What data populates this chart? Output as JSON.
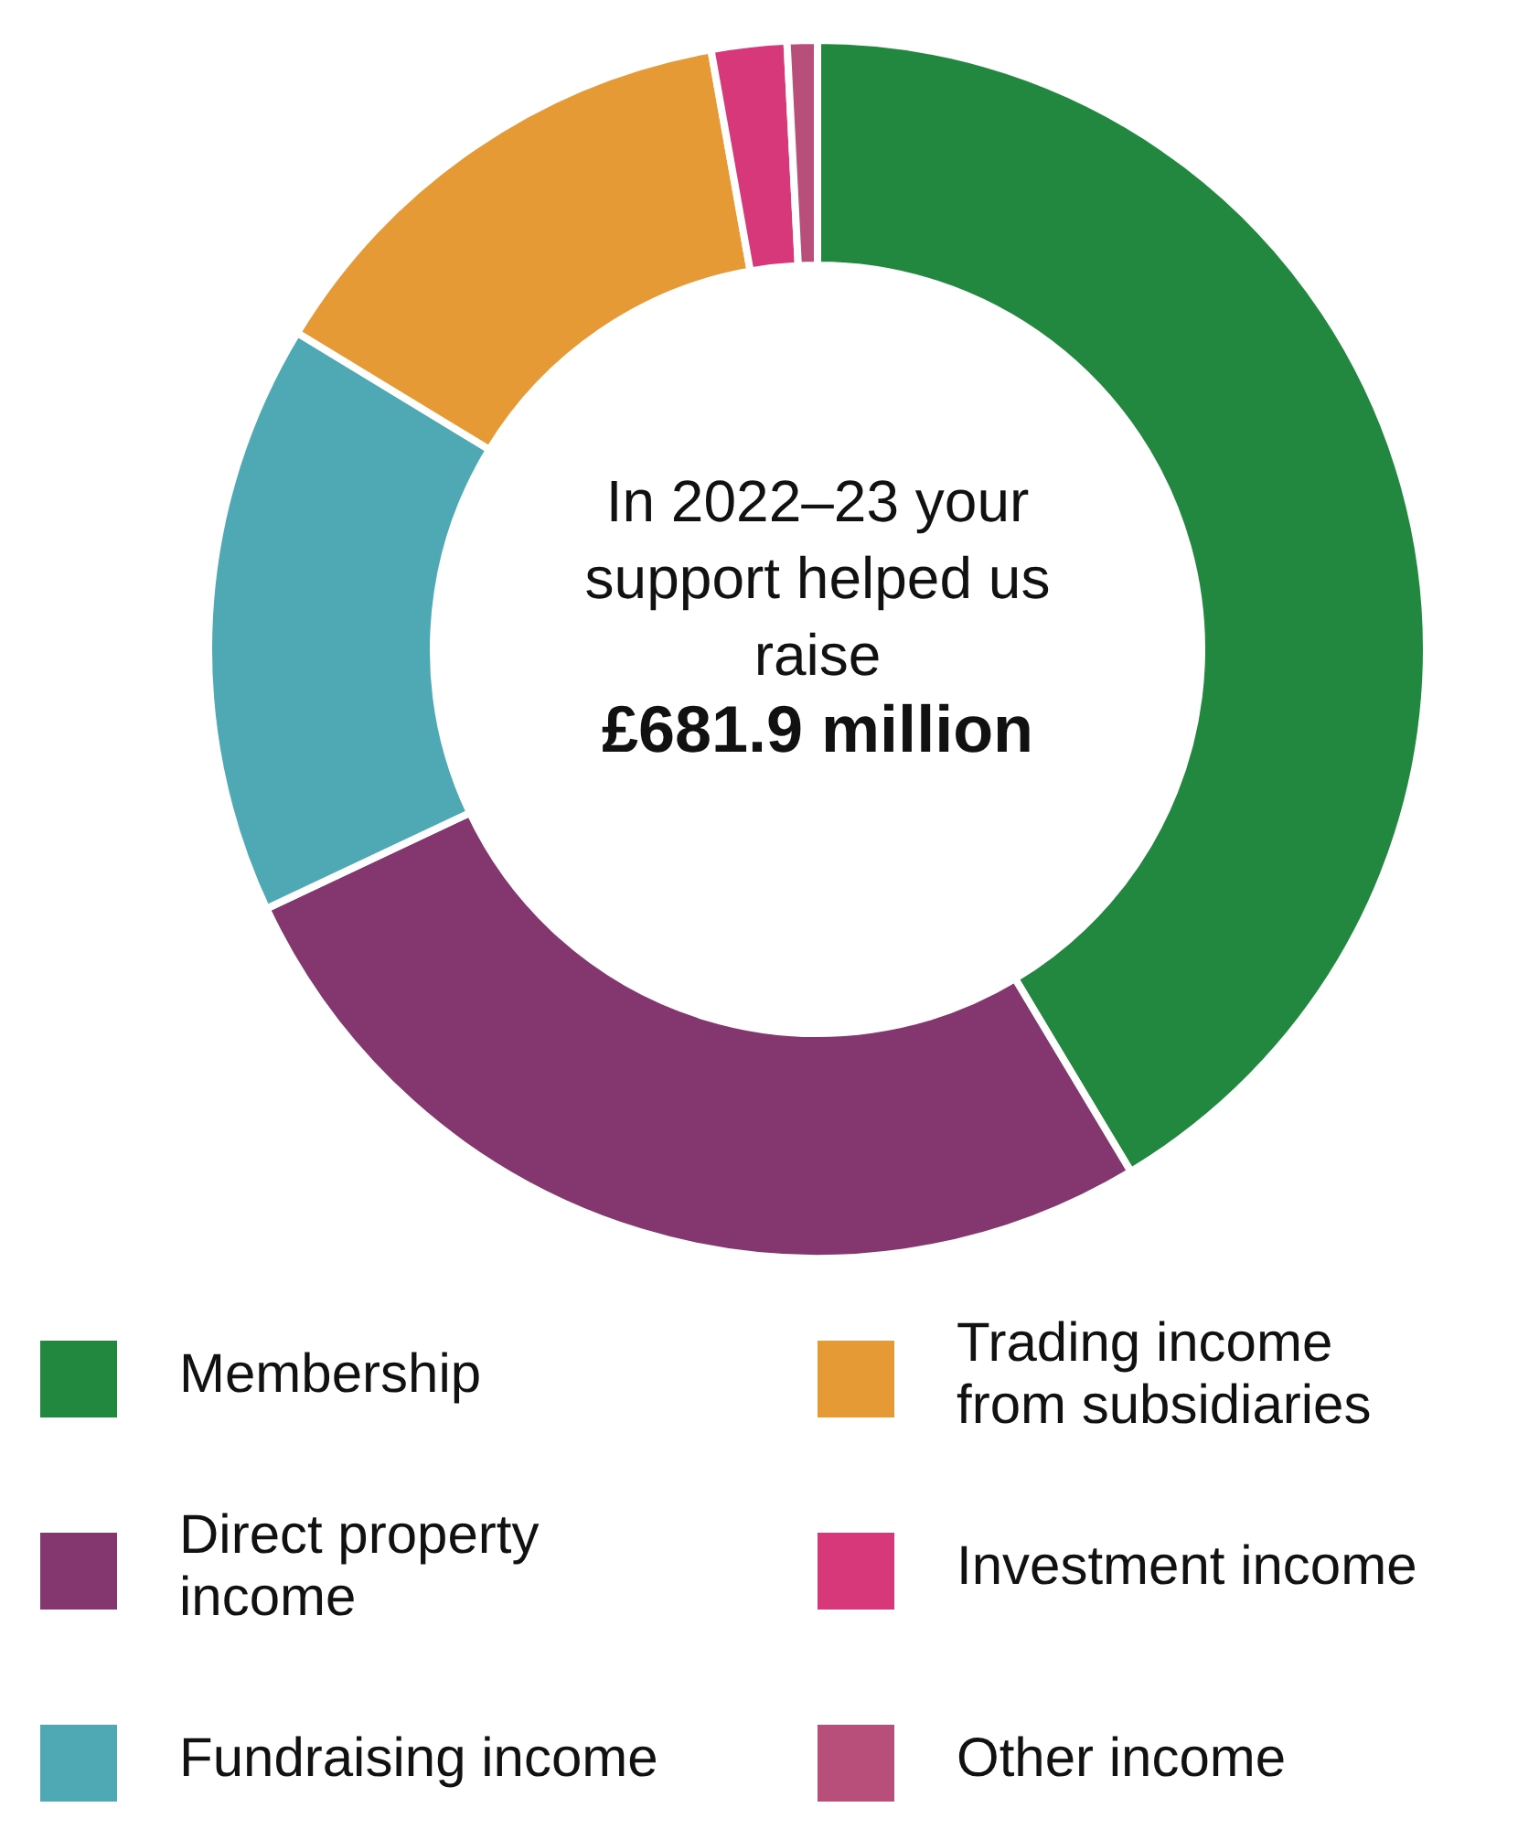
{
  "chart_data": {
    "type": "donut",
    "title": "In 2022–23 your support helped us raise",
    "subtitle": "£681.9 million",
    "categories": [
      "Membership",
      "Direct property income",
      "Fundraising income",
      "Trading income from subsidiaries",
      "Investment income",
      "Other income"
    ],
    "values": [
      41.4,
      26.6,
      15.7,
      13.5,
      2.0,
      0.8
    ],
    "colors": [
      "#22873f",
      "#84366f",
      "#4ea9b5",
      "#e69a35",
      "#d6387a",
      "#b84f7a"
    ],
    "legend": "bottom"
  }
}
